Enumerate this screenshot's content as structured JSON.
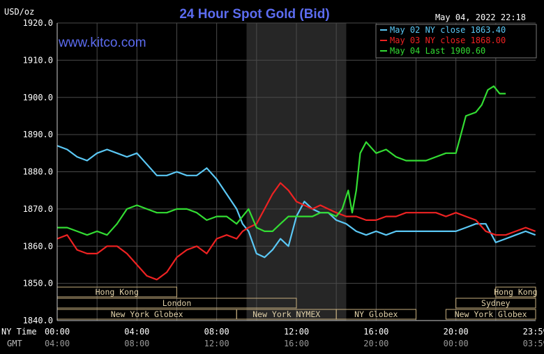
{
  "chart_data": {
    "type": "line",
    "title": "24 Hour Spot Gold (Bid)",
    "ylabel": "USD/oz",
    "watermark": "www.kitco.com",
    "timestamp": "May 04, 2022 22:18",
    "ylim": [
      1840,
      1920
    ],
    "yticks": [
      "1920.0",
      "1910.0",
      "1900.0",
      "1890.0",
      "1880.0",
      "1870.0",
      "1860.0",
      "1850.0",
      "1840.0"
    ],
    "xlim": [
      0,
      24
    ],
    "x_ny_ticks": [
      "00:00",
      "04:00",
      "08:00",
      "12:00",
      "16:00",
      "20:00",
      "23:59"
    ],
    "x_gmt_ticks": [
      "04:00",
      "08:00",
      "12:00",
      "16:00",
      "20:00",
      "00:00",
      "03:59"
    ],
    "x_ny_label": "NY Time",
    "x_gmt_label": "GMT",
    "grid": true,
    "legend_position": "top-right",
    "shaded_session": [
      9.5,
      14.5
    ],
    "markets": [
      {
        "label": "Hong Kong",
        "start": 0.0,
        "end": 6.0,
        "row": 0
      },
      {
        "label": "Hong Kong",
        "start": 22.0,
        "end": 24.0,
        "row": 0
      },
      {
        "label": "London",
        "start": 0.0,
        "end": 12.0,
        "row": 1
      },
      {
        "label": "Sydney",
        "start": 20.0,
        "end": 24.0,
        "row": 1
      },
      {
        "label": "New York Globex",
        "start": 0.0,
        "end": 9.0,
        "row": 2
      },
      {
        "label": "New York NYMEX",
        "start": 9.0,
        "end": 14.0,
        "row": 2
      },
      {
        "label": "NY Globex",
        "start": 14.0,
        "end": 18.0,
        "row": 2
      },
      {
        "label": "New York Globex",
        "start": 19.5,
        "end": 24.0,
        "row": 2
      }
    ],
    "series": [
      {
        "name": "May 02 NY close 1863.40",
        "color": "#5bc8f5",
        "x": [
          0,
          0.5,
          1,
          1.5,
          2,
          2.5,
          3,
          3.5,
          4,
          4.5,
          5,
          5.5,
          6,
          6.5,
          7,
          7.5,
          8,
          8.5,
          9,
          9.3,
          9.6,
          10,
          10.4,
          10.8,
          11.2,
          11.6,
          12,
          12.4,
          12.8,
          13.2,
          13.6,
          14,
          14.5,
          15,
          15.5,
          16,
          16.5,
          17,
          17.5,
          18,
          18.5,
          19,
          19.5,
          20,
          20.5,
          21,
          21.5,
          22,
          22.5,
          23,
          23.5,
          23.99
        ],
        "values": [
          1887,
          1886,
          1884,
          1883,
          1885,
          1886,
          1885,
          1884,
          1885,
          1882,
          1879,
          1879,
          1880,
          1879,
          1879,
          1881,
          1878,
          1874,
          1870,
          1866,
          1864,
          1858,
          1857,
          1859,
          1862,
          1860,
          1868,
          1872,
          1870,
          1869,
          1869,
          1867,
          1866,
          1864,
          1863,
          1864,
          1863,
          1864,
          1864,
          1864,
          1864,
          1864,
          1864,
          1864,
          1865,
          1866,
          1866,
          1861,
          1862,
          1863,
          1864,
          1863
        ]
      },
      {
        "name": "May 03 NY close 1868.00",
        "color": "#ee2222",
        "x": [
          0,
          0.5,
          1,
          1.5,
          2,
          2.5,
          3,
          3.5,
          4,
          4.5,
          5,
          5.5,
          6,
          6.5,
          7,
          7.5,
          8,
          8.5,
          9,
          9.3,
          9.6,
          10,
          10.4,
          10.8,
          11.2,
          11.6,
          12,
          12.4,
          12.8,
          13.2,
          13.6,
          14,
          14.5,
          15,
          15.5,
          16,
          16.5,
          17,
          17.5,
          18,
          18.5,
          19,
          19.5,
          20,
          20.5,
          21,
          21.5,
          22,
          22.5,
          23,
          23.5,
          23.99
        ],
        "values": [
          1862,
          1863,
          1859,
          1858,
          1858,
          1860,
          1860,
          1858,
          1855,
          1852,
          1851,
          1853,
          1857,
          1859,
          1860,
          1858,
          1862,
          1863,
          1862,
          1864,
          1865,
          1866,
          1870,
          1874,
          1877,
          1875,
          1872,
          1871,
          1870,
          1871,
          1870,
          1869,
          1868,
          1868,
          1867,
          1867,
          1868,
          1868,
          1869,
          1869,
          1869,
          1869,
          1868,
          1869,
          1868,
          1867,
          1864,
          1863,
          1863,
          1864,
          1865,
          1864
        ]
      },
      {
        "name": "May 04 Last 1900.60",
        "color": "#33dd33",
        "x": [
          0,
          0.5,
          1,
          1.5,
          2,
          2.5,
          3,
          3.5,
          4,
          4.5,
          5,
          5.5,
          6,
          6.5,
          7,
          7.5,
          8,
          8.5,
          9,
          9.3,
          9.6,
          10,
          10.4,
          10.8,
          11.2,
          11.6,
          12,
          12.4,
          12.8,
          13.2,
          13.6,
          14,
          14.3,
          14.6,
          14.8,
          15,
          15.2,
          15.5,
          16,
          16.5,
          17,
          17.5,
          18,
          18.5,
          19,
          19.5,
          20,
          20.5,
          21,
          21.3,
          21.6,
          21.9,
          22.2,
          22.5
        ],
        "values": [
          1865,
          1865,
          1864,
          1863,
          1864,
          1863,
          1866,
          1870,
          1871,
          1870,
          1869,
          1869,
          1870,
          1870,
          1869,
          1867,
          1868,
          1868,
          1866,
          1868,
          1870,
          1865,
          1864,
          1864,
          1866,
          1868,
          1868,
          1868,
          1868,
          1869,
          1869,
          1868,
          1870,
          1875,
          1869,
          1875,
          1885,
          1888,
          1885,
          1886,
          1884,
          1883,
          1883,
          1883,
          1884,
          1885,
          1885,
          1895,
          1896,
          1898,
          1902,
          1903,
          1901,
          1901
        ]
      }
    ]
  }
}
